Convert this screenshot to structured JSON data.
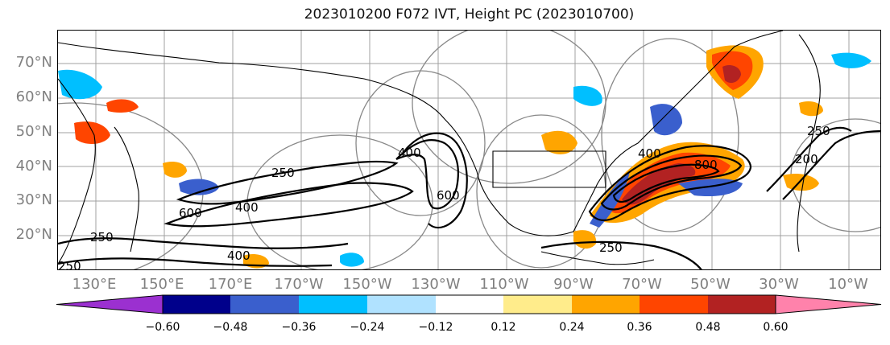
{
  "title": "2023010200 F072 IVT, Height PC (2023010700)",
  "lat_labels": [
    "70°N",
    "60°N",
    "50°N",
    "40°N",
    "30°N",
    "20°N"
  ],
  "lon_labels": [
    "130°E",
    "150°E",
    "170°E",
    "170°W",
    "150°W",
    "130°W",
    "110°W",
    "90°W",
    "70°W",
    "50°W",
    "30°W",
    "10°W"
  ],
  "contour_labels": [
    "250",
    "600",
    "400",
    "250",
    "400",
    "250",
    "400",
    "600",
    "250",
    "400",
    "800",
    "200",
    "250"
  ],
  "colorbar": {
    "ticks": [
      "−0.60",
      "−0.48",
      "−0.36",
      "−0.24",
      "−0.12",
      "0.12",
      "0.24",
      "0.36",
      "0.48",
      "0.60"
    ],
    "colors": [
      "#9b30d0",
      "#00008b",
      "#3a5fcd",
      "#00bfff",
      "#b0e2ff",
      "#ffffff",
      "#ffec8b",
      "#ffa500",
      "#ff4500",
      "#b22222",
      "#ff82ab"
    ]
  }
}
